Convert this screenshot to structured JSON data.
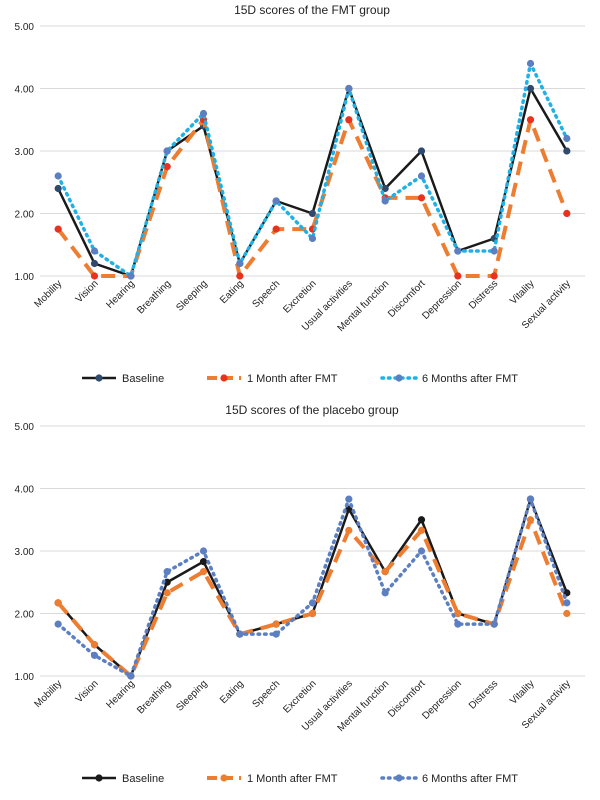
{
  "chart_data": [
    {
      "type": "line",
      "title": "15D scores of the FMT group",
      "xlabel": "",
      "ylabel": "",
      "ylim": [
        1.0,
        5.0
      ],
      "yticks": [
        "1.00",
        "2.00",
        "3.00",
        "4.00",
        "5.00"
      ],
      "grid": "horizontal",
      "legend_position": "bottom",
      "categories": [
        "Mobility",
        "Vision",
        "Hearing",
        "Breathing",
        "Sleeping",
        "Eating",
        "Speech",
        "Excretion",
        "Usual activities",
        "Mental function",
        "Discomfort",
        "Depression",
        "Distress",
        "Vitality",
        "Sexual activity"
      ],
      "series": [
        {
          "name": "Baseline",
          "color": "#1a1a1a",
          "style": "solid",
          "marker": "#2f4a6d",
          "values": [
            2.4,
            1.2,
            1.0,
            3.0,
            3.4,
            1.2,
            2.2,
            2.0,
            4.0,
            2.4,
            3.0,
            1.4,
            1.6,
            4.0,
            3.0
          ]
        },
        {
          "name": "1 Month after FMT",
          "color": "#ed7d31",
          "style": "dashed",
          "marker": "#e8321e",
          "values": [
            1.75,
            1.0,
            1.0,
            2.75,
            3.5,
            1.0,
            1.75,
            1.75,
            3.5,
            2.25,
            2.25,
            1.0,
            1.0,
            3.5,
            2.0
          ]
        },
        {
          "name": "6 Months after FMT",
          "color": "#1fb1e6",
          "style": "dotted",
          "marker": "#5b7fc0",
          "values": [
            2.6,
            1.4,
            1.0,
            3.0,
            3.6,
            1.2,
            2.2,
            1.6,
            4.0,
            2.2,
            2.6,
            1.4,
            1.4,
            4.4,
            3.2
          ]
        }
      ]
    },
    {
      "type": "line",
      "title": "15D scores of the placebo group",
      "xlabel": "",
      "ylabel": "",
      "ylim": [
        1.0,
        5.0
      ],
      "yticks": [
        "1.00",
        "2.00",
        "3.00",
        "4.00",
        "5.00"
      ],
      "grid": "horizontal",
      "legend_position": "bottom",
      "categories": [
        "Mobility",
        "Vision",
        "Hearing",
        "Breathing",
        "Sleeping",
        "Eating",
        "Speech",
        "Excretion",
        "Usual activities",
        "Mental function",
        "Discomfort",
        "Depression",
        "Distress",
        "Vitality",
        "Sexual activity"
      ],
      "series": [
        {
          "name": "Baseline",
          "color": "#1a1a1a",
          "style": "solid",
          "marker": "#1a1a1a",
          "values": [
            2.17,
            1.5,
            1.0,
            2.5,
            2.83,
            1.67,
            1.83,
            2.0,
            3.67,
            2.67,
            3.5,
            2.0,
            1.83,
            3.83,
            2.33
          ]
        },
        {
          "name": "1 Month after FMT",
          "color": "#ed7d31",
          "style": "dashed",
          "marker": "#ed7d31",
          "values": [
            2.17,
            1.5,
            1.0,
            2.33,
            2.67,
            1.67,
            1.83,
            2.0,
            3.33,
            2.67,
            3.33,
            2.0,
            1.83,
            3.5,
            2.0
          ]
        },
        {
          "name": "6 Months after FMT",
          "color": "#5b7fc0",
          "style": "dotted",
          "marker": "#5b7fc0",
          "values": [
            1.83,
            1.33,
            1.0,
            2.67,
            3.0,
            1.67,
            1.67,
            2.17,
            3.83,
            2.33,
            3.0,
            1.83,
            1.83,
            3.83,
            2.17
          ]
        }
      ]
    }
  ]
}
